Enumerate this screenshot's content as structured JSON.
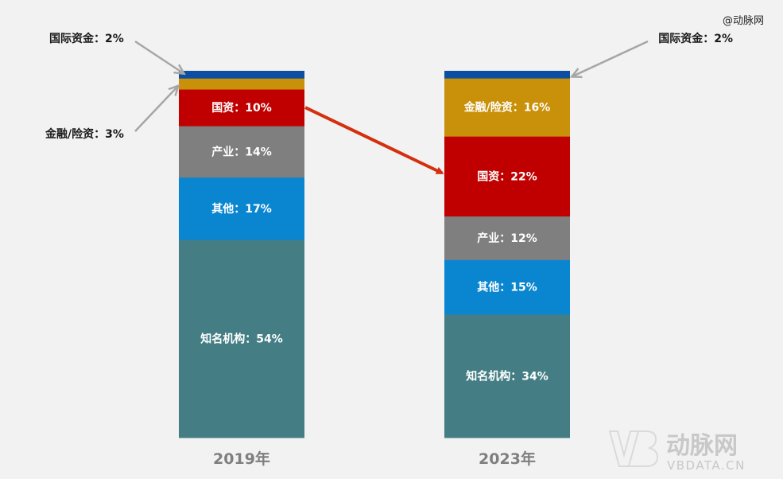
{
  "credit": "@动脉网",
  "watermark": {
    "brand": "动脉网",
    "url": "VBDATA.CN"
  },
  "colors": {
    "国际资金": "#0b4ea2",
    "金融/险资": "#c9900a",
    "国资": "#c00000",
    "产业": "#7f7f7f",
    "其他": "#0a86d1",
    "知名机构": "#447e84",
    "arrow": "#d4300f",
    "pointer": "#a6a6a6"
  },
  "chart_data": {
    "type": "bar",
    "stacked": true,
    "normalized": true,
    "categories": [
      "2019年",
      "2023年"
    ],
    "series": [
      {
        "name": "知名机构",
        "values": [
          54,
          34
        ],
        "labels": [
          "知名机构：54%",
          "知名机构：34%"
        ]
      },
      {
        "name": "其他",
        "values": [
          17,
          15
        ],
        "labels": [
          "其他：17%",
          "其他：15%"
        ]
      },
      {
        "name": "产业",
        "values": [
          14,
          12
        ],
        "labels": [
          "产业：14%",
          "产业：12%"
        ]
      },
      {
        "name": "国资",
        "values": [
          10,
          22
        ],
        "labels": [
          "国资：10%",
          "国资：22%"
        ]
      },
      {
        "name": "金融/险资",
        "values": [
          3,
          16
        ],
        "labels": [
          "金融/险资：3%",
          "金融/险资：16%"
        ]
      },
      {
        "name": "国际资金",
        "values": [
          2,
          2
        ],
        "labels": [
          "国际资金：2%",
          "国际资金：2%"
        ]
      }
    ]
  }
}
